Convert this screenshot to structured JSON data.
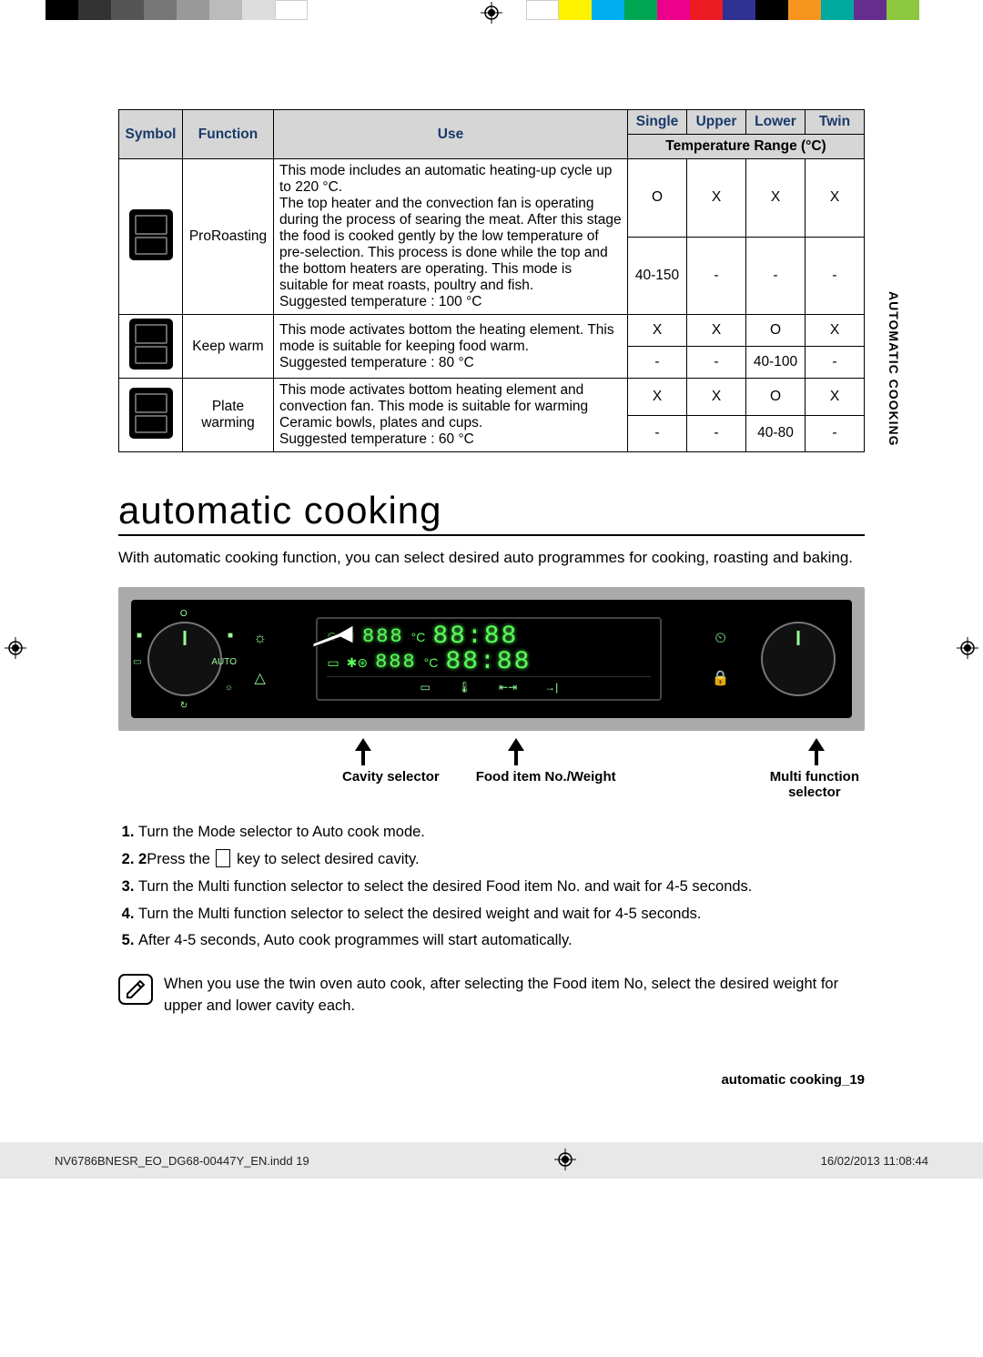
{
  "color_bars": {
    "left": [
      "#000000",
      "#333333",
      "#555555",
      "#777777",
      "#999999",
      "#bbbbbb",
      "#dddddd",
      "#ffffff"
    ],
    "right": [
      "#ffffff",
      "#fff200",
      "#00aeef",
      "#00a651",
      "#ec008c",
      "#ed1c24",
      "#2e3192",
      "#000000",
      "#f7941d",
      "#00a99d",
      "#662d91",
      "#8dc63f"
    ]
  },
  "table": {
    "headers": {
      "symbol": "Symbol",
      "function": "Function",
      "use": "Use",
      "single": "Single",
      "upper": "Upper",
      "lower": "Lower",
      "twin": "Twin",
      "temp_range": "Temperature Range (°C)"
    },
    "rows": [
      {
        "function": "ProRoasting",
        "use": "This mode includes an automatic heating-up cycle up to 220 °C.\nThe top heater and the convection fan is operating during the process of searing the meat. After this stage the food is cooked gently by the low temperature of pre-selection. This process is done while the top and the bottom heaters are operating. This mode is suitable for meat roasts, poultry and fish.\nSuggested temperature : 100 °C",
        "avail": {
          "single": "O",
          "upper": "X",
          "lower": "X",
          "twin": "X"
        },
        "temp": {
          "single": "40-150",
          "upper": "-",
          "lower": "-",
          "twin": "-"
        }
      },
      {
        "function": "Keep warm",
        "use": "This mode activates bottom the heating element. This mode is suitable for keeping food warm.\nSuggested temperature : 80 °C",
        "avail": {
          "single": "X",
          "upper": "X",
          "lower": "O",
          "twin": "X"
        },
        "temp": {
          "single": "-",
          "upper": "-",
          "lower": "40-100",
          "twin": "-"
        }
      },
      {
        "function": "Plate warming",
        "use": "This mode activates bottom heating element and convection fan. This mode is suitable for warming Ceramic bowls, plates and cups.\nSuggested temperature : 60 °C",
        "avail": {
          "single": "X",
          "upper": "X",
          "lower": "O",
          "twin": "X"
        },
        "temp": {
          "single": "-",
          "upper": "-",
          "lower": "40-80",
          "twin": "-"
        }
      }
    ]
  },
  "section_heading": "automatic cooking",
  "intro": "With automatic cooking function, you can select desired auto programmes for cooking, roasting and baking.",
  "panel": {
    "seg_top_left": "888",
    "seg_top_right": "88:88",
    "seg_bot_left": "888",
    "seg_bot_right": "88:88",
    "deg": "°C",
    "btn_icons": [
      "▭",
      "🌡",
      "⇤⇥",
      "→|"
    ],
    "side_left": [
      "☼",
      "△"
    ],
    "side_right": [
      "⏲",
      "🔒"
    ],
    "left_dial_marks": [
      "O",
      "■",
      "AUTO",
      "☼",
      "↻",
      "▭",
      "■"
    ]
  },
  "panel_labels": {
    "cavity": "Cavity selector",
    "food": "Food item No./Weight",
    "multi": "Multi function",
    "selector": "selector"
  },
  "steps": [
    "Turn the Mode selector to Auto cook mode.",
    "Press the  key to select desired cavity.",
    "Turn the Multi function selector to select the desired Food item No. and wait for 4-5 seconds.",
    "Turn the Multi function selector to select the desired weight and wait for 4-5 seconds.",
    "After 4-5 seconds, Auto cook programmes will start automatically."
  ],
  "note": "When you use the twin oven auto cook, after selecting the Food item No, select the desired weight for upper and lower cavity each.",
  "side_tab": "AUTOMATIC COOKING",
  "footer_page": "automatic cooking_19",
  "print_footer": {
    "file": "NV6786BNESR_EO_DG68-00447Y_EN.indd   19",
    "date": "16/02/2013   11:08:44"
  }
}
